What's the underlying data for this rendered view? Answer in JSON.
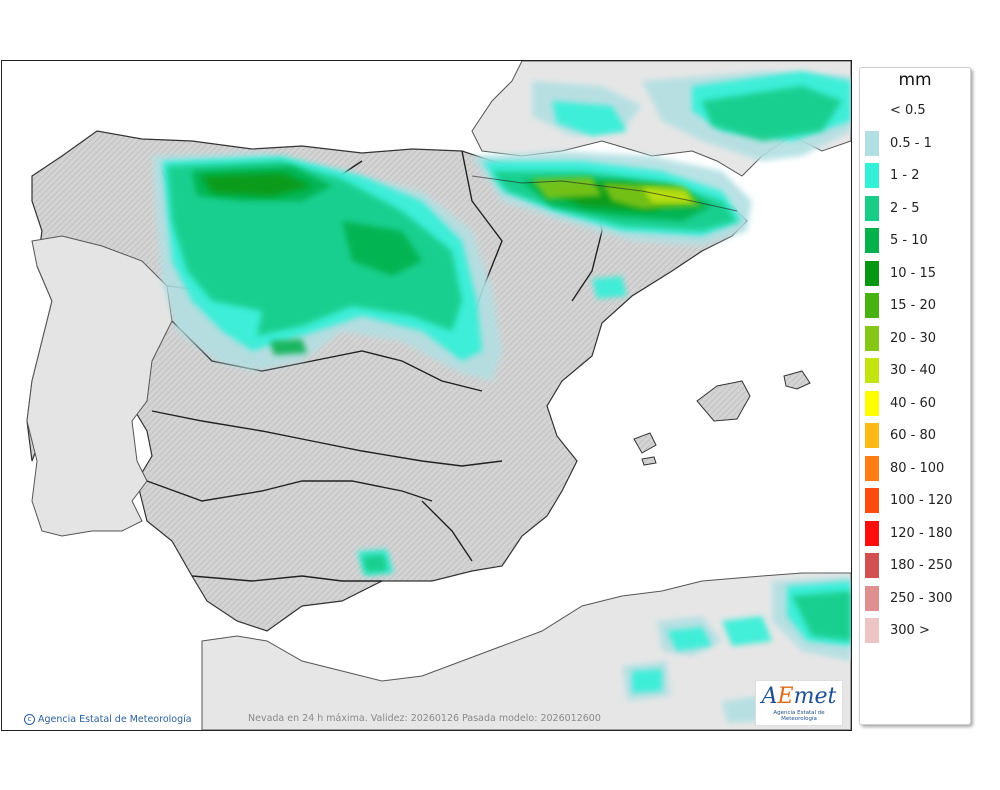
{
  "map": {
    "credit": "Agencia Estatal de Meteorología",
    "caption": "Nevada en 24 h máxima. Validez: 20260126 Pasada modelo: 2026012600",
    "logo": {
      "wordmark_prefix": "A",
      "wordmark_e": "E",
      "wordmark_suffix": "met",
      "subtitle": "Agencia Estatal de Meteorología"
    }
  },
  "legend": {
    "unit": "mm",
    "classes": [
      {
        "label": "< 0.5",
        "color": "#ffffff"
      },
      {
        "label": "0.5 - 1",
        "color": "#b2dfe2"
      },
      {
        "label": "1 - 2",
        "color": "#33f0d8"
      },
      {
        "label": "2 - 5",
        "color": "#19cc88"
      },
      {
        "label": "5 - 10",
        "color": "#06b04a"
      },
      {
        "label": "10 - 15",
        "color": "#079611"
      },
      {
        "label": "15 - 20",
        "color": "#49b212"
      },
      {
        "label": "20 - 30",
        "color": "#85c618"
      },
      {
        "label": "30 - 40",
        "color": "#c4e40f"
      },
      {
        "label": "40 - 60",
        "color": "#ffff00"
      },
      {
        "label": "60 - 80",
        "color": "#ffba17"
      },
      {
        "label": "80 - 100",
        "color": "#ff7d15"
      },
      {
        "label": "100 - 120",
        "color": "#ff4a10"
      },
      {
        "label": "120 - 180",
        "color": "#ff0d0d"
      },
      {
        "label": "180 - 250",
        "color": "#d25050"
      },
      {
        "label": "250 - 300",
        "color": "#de9090"
      },
      {
        "label": "300 >",
        "color": "#eec5c5"
      }
    ]
  },
  "colors": {
    "land": "#d6d6d6",
    "sea": "#ffffff",
    "borders": "#222222"
  }
}
